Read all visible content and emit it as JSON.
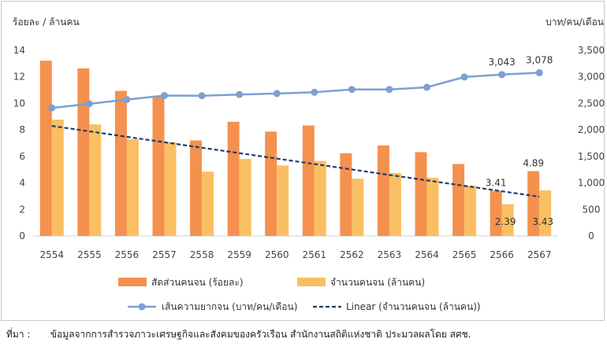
{
  "source": {
    "label": "ที่มา :",
    "text": "ข้อมูลจากการสำรวจภาวะเศรษฐกิจและสังคมของครัวเรือน สำนักงานสถิติแห่งชาติ ประมวลผลโดย สศช."
  },
  "chart_data": {
    "type": "bar",
    "categories": [
      "2554",
      "2555",
      "2556",
      "2557",
      "2558",
      "2559",
      "2560",
      "2561",
      "2562",
      "2563",
      "2564",
      "2565",
      "2566",
      "2567"
    ],
    "left_axis": {
      "label": "ร้อยละ / ล้านคน",
      "min": 0,
      "max": 14,
      "ticks": [
        0,
        2,
        4,
        6,
        8,
        10,
        12,
        14
      ]
    },
    "right_axis": {
      "label": "บาท/คน/เดือน",
      "min": 0,
      "max": 3500,
      "ticks": [
        "0",
        "500",
        "1,000",
        "1,500",
        "2,000",
        "2,500",
        "3,000",
        "3,500"
      ]
    },
    "series": [
      {
        "name": "สัดส่วนคนจน (ร้อยละ)",
        "type": "bar",
        "axis": "left",
        "color": "#f4914e",
        "values": [
          13.22,
          12.64,
          10.94,
          10.53,
          7.21,
          8.61,
          7.87,
          8.33,
          6.24,
          6.83,
          6.32,
          5.43,
          3.41,
          4.89
        ]
      },
      {
        "name": "จำนวนคนจน (ล้านคน)",
        "type": "bar",
        "axis": "left",
        "color": "#fbbf63",
        "values": [
          8.77,
          8.41,
          7.3,
          7.07,
          4.85,
          5.81,
          5.32,
          5.66,
          4.32,
          4.75,
          4.39,
          3.79,
          2.39,
          3.43
        ]
      },
      {
        "name": "เส้นความยากจน (บาท/คน/เดือน)",
        "type": "line",
        "axis": "right",
        "color": "#7f9fd2",
        "values": [
          2415,
          2492,
          2572,
          2647,
          2644,
          2667,
          2686,
          2710,
          2763,
          2762,
          2803,
          2997,
          3043,
          3078
        ]
      },
      {
        "name": "Linear (จำนวนคนจน (ล้านคน))",
        "type": "trend",
        "axis": "left",
        "color": "#1f3d6e",
        "values": [
          8.3,
          7.89,
          7.48,
          7.07,
          6.66,
          6.25,
          5.84,
          5.42,
          5.01,
          4.6,
          4.19,
          3.78,
          3.37,
          2.96
        ]
      }
    ],
    "annotations": [
      {
        "series": 2,
        "index": 12,
        "text": "3,043"
      },
      {
        "series": 2,
        "index": 13,
        "text": "3,078"
      },
      {
        "series": 0,
        "index": 12,
        "text": "3.41"
      },
      {
        "series": 0,
        "index": 13,
        "text": "4.89"
      },
      {
        "series": 1,
        "index": 12,
        "text": "2.39"
      },
      {
        "series": 1,
        "index": 13,
        "text": "3.43"
      }
    ],
    "legend_position": "bottom",
    "grid": false
  }
}
